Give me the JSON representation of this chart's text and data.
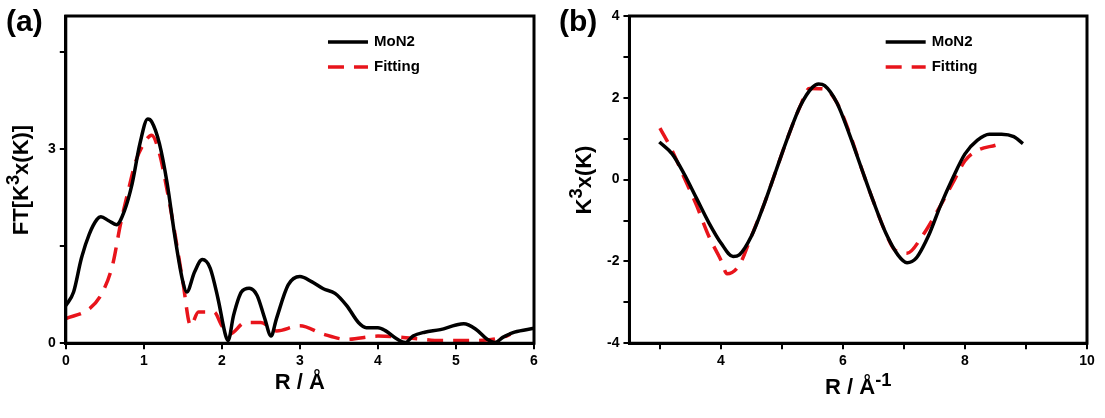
{
  "chart_data": [
    {
      "type": "line",
      "title": "(a)",
      "xlabel": "R / Å",
      "ylabel": "FT[K$^{3}$x(K)]",
      "xlim": [
        0,
        6
      ],
      "ylim": [
        0,
        5.05
      ],
      "xticks": [
        0,
        1,
        2,
        3,
        4,
        5,
        6
      ],
      "yticks": [
        0,
        {
          "value": 1.5,
          "label": null
        },
        3,
        {
          "value": 4.5,
          "label": null
        }
      ],
      "grid": false,
      "legend": "top right",
      "marker": "none",
      "series": [
        {
          "name": "MoN2",
          "color": "#000000",
          "line_style": "solid",
          "x": [
            0,
            0.1,
            0.2,
            0.3,
            0.4,
            0.45,
            0.55,
            0.65,
            0.75,
            0.85,
            0.95,
            1.05,
            1.1,
            1.2,
            1.3,
            1.4,
            1.5,
            1.55,
            1.65,
            1.75,
            1.85,
            1.95,
            2.05,
            2.08,
            2.15,
            2.25,
            2.35,
            2.45,
            2.55,
            2.63,
            2.7,
            2.85,
            3.0,
            3.15,
            3.3,
            3.45,
            3.6,
            3.75,
            3.85,
            4.0,
            4.1,
            4.25,
            4.35,
            4.45,
            4.6,
            4.8,
            5.0,
            5.1,
            5.25,
            5.4,
            5.5,
            5.6,
            5.75,
            6.0
          ],
          "values": [
            0.58,
            0.79,
            1.31,
            1.68,
            1.91,
            1.95,
            1.89,
            1.83,
            2.04,
            2.46,
            3.08,
            3.46,
            3.42,
            3.08,
            2.46,
            1.63,
            0.95,
            0.79,
            1.1,
            1.29,
            1.16,
            0.69,
            0.11,
            0.04,
            0.43,
            0.79,
            0.85,
            0.74,
            0.38,
            0.11,
            0.38,
            0.9,
            1.03,
            0.95,
            0.84,
            0.77,
            0.58,
            0.32,
            0.24,
            0.24,
            0.19,
            0.06,
            0.01,
            0.11,
            0.17,
            0.21,
            0.28,
            0.3,
            0.22,
            0.06,
            0.01,
            0.09,
            0.17,
            0.23
          ]
        },
        {
          "name": "Fitting",
          "color": "#e8141b",
          "line_style": "dashed",
          "x": [
            0,
            0.3,
            0.45,
            0.6,
            0.7,
            0.8,
            0.9,
            1.0,
            1.1,
            1.2,
            1.3,
            1.4,
            1.5,
            1.6,
            1.7,
            1.9,
            2.0,
            2.1,
            2.3,
            2.5,
            2.7,
            3.0,
            3.3,
            3.6,
            4.0,
            4.5,
            4.8,
            5.2,
            5.6,
            5.7
          ],
          "values": [
            0.38,
            0.53,
            0.74,
            1.21,
            1.83,
            2.35,
            2.82,
            3.08,
            3.21,
            2.93,
            2.35,
            1.68,
            0.95,
            0.27,
            0.48,
            0.48,
            0.27,
            0.14,
            0.32,
            0.32,
            0.19,
            0.27,
            0.14,
            0.06,
            0.11,
            0.07,
            0.04,
            0.04,
            0.09,
            0.14
          ]
        }
      ]
    },
    {
      "type": "line",
      "title": "(b)",
      "xlabel": "R / Å$^{-1}$",
      "ylabel": "K$^{3}$x(K)",
      "xlim": [
        2.5,
        10
      ],
      "ylim": [
        -4,
        4
      ],
      "xticks": [
        {
          "value": 3,
          "label": null
        },
        4,
        {
          "value": 5,
          "label": null
        },
        6,
        {
          "value": 7,
          "label": null
        },
        8,
        {
          "value": 9,
          "label": null
        },
        10
      ],
      "yticks": [
        -4,
        {
          "value": -3,
          "label": null
        },
        -2,
        {
          "value": -1,
          "label": null
        },
        0,
        {
          "value": 1,
          "label": null
        },
        2,
        {
          "value": 3,
          "label": null
        },
        4
      ],
      "grid": false,
      "legend": "top right",
      "marker": "none",
      "series": [
        {
          "name": "MoN2",
          "color": "#000000",
          "line_style": "solid",
          "x": [
            2.99,
            3.2,
            3.4,
            3.6,
            3.8,
            4.0,
            4.2,
            4.3,
            4.5,
            4.7,
            4.9,
            5.1,
            5.3,
            5.5,
            5.6,
            5.7,
            5.9,
            6.1,
            6.3,
            6.5,
            6.7,
            6.9,
            7.05,
            7.2,
            7.4,
            7.6,
            7.8,
            8.0,
            8.2,
            8.4,
            8.6,
            8.8,
            8.95
          ],
          "values": [
            0.92,
            0.63,
            0.13,
            -0.46,
            -1.05,
            -1.55,
            -1.88,
            -1.84,
            -1.38,
            -0.63,
            0.21,
            1.05,
            1.8,
            2.26,
            2.34,
            2.3,
            1.88,
            1.13,
            0.29,
            -0.54,
            -1.3,
            -1.84,
            -2.03,
            -1.92,
            -1.38,
            -0.63,
            0.04,
            0.63,
            0.96,
            1.11,
            1.11,
            1.05,
            0.88
          ]
        },
        {
          "name": "Fitting",
          "color": "#e8141b",
          "line_style": "dashed",
          "x": [
            3.0,
            3.2,
            3.4,
            3.6,
            3.8,
            4.0,
            4.1,
            4.3,
            4.5,
            4.7,
            4.9,
            5.1,
            5.3,
            5.45,
            5.7,
            5.9,
            6.1,
            6.3,
            6.5,
            6.7,
            6.85,
            7.05,
            7.3,
            7.6,
            7.8,
            8.0,
            8.2,
            8.5
          ],
          "values": [
            1.26,
            0.71,
            0.04,
            -0.63,
            -1.38,
            -1.97,
            -2.3,
            -2.09,
            -1.38,
            -0.63,
            0.21,
            1.05,
            1.8,
            2.23,
            2.22,
            1.88,
            1.17,
            0.29,
            -0.54,
            -1.3,
            -1.72,
            -1.8,
            -1.38,
            -0.63,
            -0.08,
            0.46,
            0.71,
            0.84
          ]
        }
      ]
    }
  ]
}
